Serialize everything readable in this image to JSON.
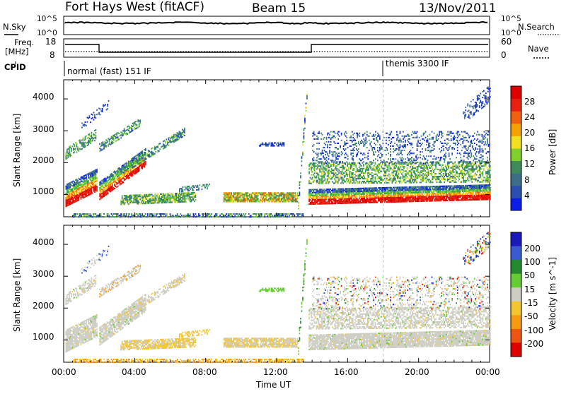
{
  "header": {
    "title": "Fort Hays West (fitACF)",
    "beam": "Beam 15",
    "date": "13/Nov/2011"
  },
  "noise_panel": {
    "left_label": "N.Sky",
    "right_label": "N.Search",
    "left_ticks": [
      "10^5",
      "10^0"
    ],
    "right_ticks": [
      "10^5",
      "10^0"
    ]
  },
  "freq_panel": {
    "left_label_1": "Freq.",
    "left_label_2": "[MHz]",
    "right_label": "Nave",
    "left_ticks": [
      "18",
      "8"
    ],
    "right_ticks": [
      "60",
      "0"
    ]
  },
  "cpid_panel": {
    "label": "CPID",
    "programs": [
      "normal (fast) 151 IF",
      "themis 3300 IF"
    ]
  },
  "colors": {
    "power": [
      "#0a1ee6",
      "#2a4fb0",
      "#3c6e8a",
      "#3f8a5a",
      "#2ea84a",
      "#7fd02a",
      "#f0e020",
      "#f5a000",
      "#f06010",
      "#e82010",
      "#e00000"
    ],
    "velocity": [
      "#1a1ab8",
      "#3a5ad0",
      "#238b2e",
      "#66cc33",
      "#cdcdc4",
      "#f5c530",
      "#f59a10",
      "#ee5510",
      "#e00000"
    ]
  },
  "chart_data": [
    {
      "type": "heatmap",
      "name": "Power",
      "xlabel": "",
      "ylabel": "Slant Range [km]",
      "xlim": [
        0,
        24
      ],
      "ylim": [
        300,
        4600
      ],
      "yticks": [
        1000,
        2000,
        3000,
        4000
      ],
      "colorbar": {
        "label": "Power [dB]",
        "ticks": [
          "4",
          "8",
          "12",
          "16",
          "20",
          "24",
          "28"
        ],
        "range": [
          0,
          30
        ]
      }
    },
    {
      "type": "heatmap",
      "name": "Velocity",
      "xlabel": "Time UT",
      "ylabel": "Slant Range [km]",
      "xlim": [
        0,
        24
      ],
      "ylim": [
        300,
        4600
      ],
      "yticks": [
        1000,
        2000,
        3000,
        4000
      ],
      "xticks": [
        "00:00",
        "04:00",
        "08:00",
        "12:00",
        "16:00",
        "20:00",
        "00:00"
      ],
      "colorbar": {
        "label": "Velocity [m s^-1]",
        "ticks": [
          "200",
          "100",
          "50",
          "15",
          "-15",
          "-50",
          "-100",
          "-200"
        ]
      }
    }
  ]
}
